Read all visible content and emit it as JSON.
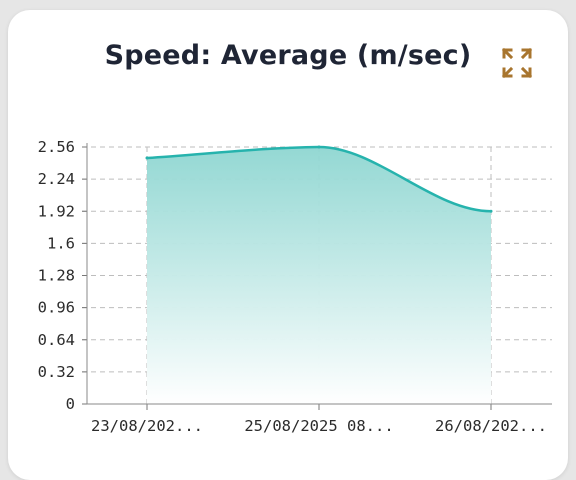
{
  "card": {
    "title": "Speed: Average (m/sec)",
    "expand_icon": "expand-icon",
    "accent_color": "#a8752e"
  },
  "chart_data": {
    "type": "area",
    "title": "Speed: Average (m/sec)",
    "xlabel": "",
    "ylabel": "",
    "categories": [
      "23/08/202...",
      "25/08/2025  08...",
      "26/08/202..."
    ],
    "x_tick_labels": [
      "23/08/202...",
      "25/08/2025  08...",
      "26/08/202..."
    ],
    "values": [
      2.45,
      2.56,
      1.92
    ],
    "ylim": [
      0,
      2.56
    ],
    "y_ticks": [
      0,
      0.32,
      0.64,
      0.96,
      1.28,
      1.6,
      1.92,
      2.24,
      2.56
    ],
    "y_tick_labels": [
      "0",
      "0.32",
      "0.64",
      "0.96",
      "1.28",
      "1.6",
      "1.92",
      "2.24",
      "2.56"
    ],
    "grid": true,
    "line_color": "#26b3ad",
    "fill_color_top": "#8ed6d1",
    "fill_color_bottom": "#ffffff"
  }
}
